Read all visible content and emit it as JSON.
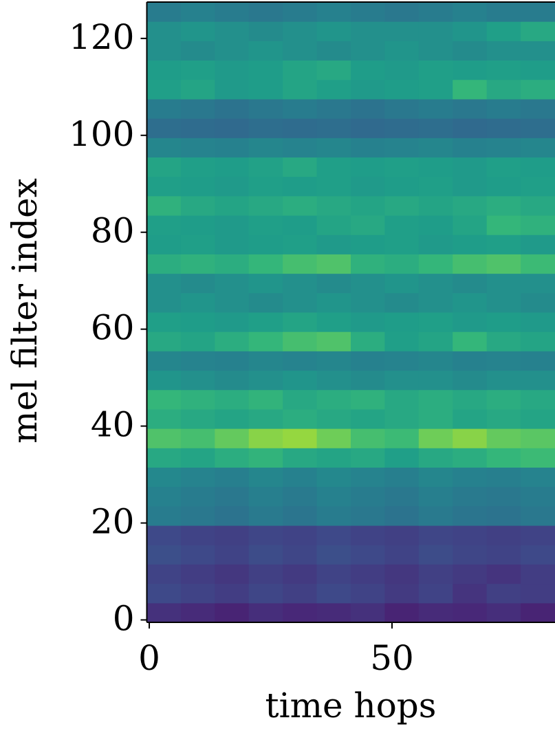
{
  "chart_data": {
    "type": "heatmap",
    "colormap": "viridis",
    "zlim": [
      0,
      1
    ],
    "x_label": "time hops",
    "y_label": "mel filter index",
    "xlim": [
      -0.5,
      83.5
    ],
    "ylim": [
      -0.5,
      127.5
    ],
    "xticks": [
      0,
      50
    ],
    "yticks": [
      0,
      20,
      40,
      60,
      80,
      100,
      120
    ],
    "x_edges": [
      -0.5,
      6.5,
      13.5,
      20.5,
      27.5,
      34.5,
      41.5,
      48.5,
      55.5,
      62.5,
      69.5,
      76.5,
      83.5
    ],
    "y_edges": [
      -0.5,
      3.5,
      7.5,
      11.5,
      15.5,
      19.5,
      23.5,
      27.5,
      31.5,
      35.5,
      39.5,
      43.5,
      47.5,
      51.5,
      55.5,
      59.5,
      63.5,
      67.5,
      71.5,
      75.5,
      79.5,
      83.5,
      87.5,
      91.5,
      95.5,
      99.5,
      103.5,
      107.5,
      111.5,
      115.5,
      119.5,
      123.5,
      127.5
    ],
    "z": [
      [
        0.14,
        0.12,
        0.1,
        0.13,
        0.11,
        0.12,
        0.14,
        0.1,
        0.12,
        0.11,
        0.13,
        0.1
      ],
      [
        0.22,
        0.2,
        0.18,
        0.21,
        0.19,
        0.22,
        0.2,
        0.17,
        0.2,
        0.15,
        0.19,
        0.18
      ],
      [
        0.2,
        0.18,
        0.16,
        0.19,
        0.17,
        0.2,
        0.18,
        0.16,
        0.19,
        0.17,
        0.15,
        0.18
      ],
      [
        0.24,
        0.22,
        0.2,
        0.23,
        0.21,
        0.24,
        0.22,
        0.2,
        0.23,
        0.21,
        0.2,
        0.22
      ],
      [
        0.22,
        0.2,
        0.19,
        0.21,
        0.2,
        0.22,
        0.2,
        0.19,
        0.21,
        0.2,
        0.19,
        0.2
      ],
      [
        0.42,
        0.4,
        0.38,
        0.41,
        0.39,
        0.42,
        0.4,
        0.38,
        0.41,
        0.39,
        0.38,
        0.4
      ],
      [
        0.44,
        0.42,
        0.4,
        0.43,
        0.41,
        0.44,
        0.42,
        0.4,
        0.43,
        0.41,
        0.4,
        0.42
      ],
      [
        0.47,
        0.45,
        0.43,
        0.46,
        0.44,
        0.47,
        0.45,
        0.43,
        0.46,
        0.44,
        0.43,
        0.45
      ],
      [
        0.6,
        0.58,
        0.62,
        0.65,
        0.6,
        0.58,
        0.6,
        0.56,
        0.6,
        0.62,
        0.66,
        0.68
      ],
      [
        0.72,
        0.7,
        0.76,
        0.82,
        0.84,
        0.78,
        0.7,
        0.68,
        0.78,
        0.82,
        0.76,
        0.74
      ],
      [
        0.62,
        0.6,
        0.58,
        0.6,
        0.62,
        0.6,
        0.58,
        0.6,
        0.62,
        0.58,
        0.6,
        0.58
      ],
      [
        0.66,
        0.64,
        0.62,
        0.65,
        0.6,
        0.62,
        0.64,
        0.6,
        0.62,
        0.6,
        0.62,
        0.6
      ],
      [
        0.52,
        0.5,
        0.48,
        0.5,
        0.52,
        0.5,
        0.48,
        0.5,
        0.5,
        0.48,
        0.5,
        0.5
      ],
      [
        0.46,
        0.45,
        0.44,
        0.46,
        0.45,
        0.46,
        0.44,
        0.45,
        0.46,
        0.44,
        0.45,
        0.44
      ],
      [
        0.6,
        0.58,
        0.62,
        0.66,
        0.7,
        0.72,
        0.62,
        0.56,
        0.58,
        0.66,
        0.6,
        0.58
      ],
      [
        0.56,
        0.55,
        0.54,
        0.56,
        0.58,
        0.56,
        0.54,
        0.55,
        0.56,
        0.54,
        0.55,
        0.54
      ],
      [
        0.5,
        0.52,
        0.5,
        0.48,
        0.5,
        0.52,
        0.5,
        0.48,
        0.5,
        0.52,
        0.5,
        0.48
      ],
      [
        0.5,
        0.48,
        0.5,
        0.52,
        0.5,
        0.48,
        0.5,
        0.52,
        0.5,
        0.48,
        0.5,
        0.5
      ],
      [
        0.62,
        0.64,
        0.62,
        0.66,
        0.7,
        0.72,
        0.64,
        0.62,
        0.66,
        0.7,
        0.72,
        0.68
      ],
      [
        0.55,
        0.56,
        0.54,
        0.55,
        0.56,
        0.54,
        0.55,
        0.56,
        0.54,
        0.55,
        0.56,
        0.54
      ],
      [
        0.56,
        0.55,
        0.54,
        0.56,
        0.55,
        0.58,
        0.6,
        0.56,
        0.55,
        0.58,
        0.66,
        0.64
      ],
      [
        0.64,
        0.6,
        0.58,
        0.6,
        0.62,
        0.6,
        0.58,
        0.6,
        0.58,
        0.6,
        0.62,
        0.6
      ],
      [
        0.56,
        0.55,
        0.54,
        0.56,
        0.55,
        0.56,
        0.54,
        0.55,
        0.56,
        0.54,
        0.55,
        0.56
      ],
      [
        0.58,
        0.56,
        0.55,
        0.57,
        0.6,
        0.56,
        0.55,
        0.56,
        0.55,
        0.54,
        0.56,
        0.55
      ],
      [
        0.46,
        0.45,
        0.44,
        0.46,
        0.45,
        0.46,
        0.44,
        0.45,
        0.46,
        0.44,
        0.45,
        0.46
      ],
      [
        0.36,
        0.35,
        0.34,
        0.36,
        0.35,
        0.36,
        0.34,
        0.35,
        0.36,
        0.34,
        0.35,
        0.36
      ],
      [
        0.42,
        0.4,
        0.38,
        0.4,
        0.42,
        0.4,
        0.38,
        0.4,
        0.42,
        0.4,
        0.42,
        0.4
      ],
      [
        0.56,
        0.58,
        0.54,
        0.55,
        0.58,
        0.56,
        0.54,
        0.55,
        0.56,
        0.66,
        0.6,
        0.62
      ],
      [
        0.55,
        0.56,
        0.54,
        0.55,
        0.58,
        0.6,
        0.55,
        0.54,
        0.56,
        0.55,
        0.56,
        0.55
      ],
      [
        0.5,
        0.48,
        0.5,
        0.52,
        0.5,
        0.48,
        0.5,
        0.52,
        0.5,
        0.48,
        0.5,
        0.5
      ],
      [
        0.5,
        0.52,
        0.5,
        0.48,
        0.5,
        0.52,
        0.5,
        0.5,
        0.5,
        0.52,
        0.56,
        0.6
      ],
      [
        0.42,
        0.44,
        0.42,
        0.4,
        0.42,
        0.44,
        0.42,
        0.4,
        0.42,
        0.44,
        0.42,
        0.42
      ]
    ]
  }
}
